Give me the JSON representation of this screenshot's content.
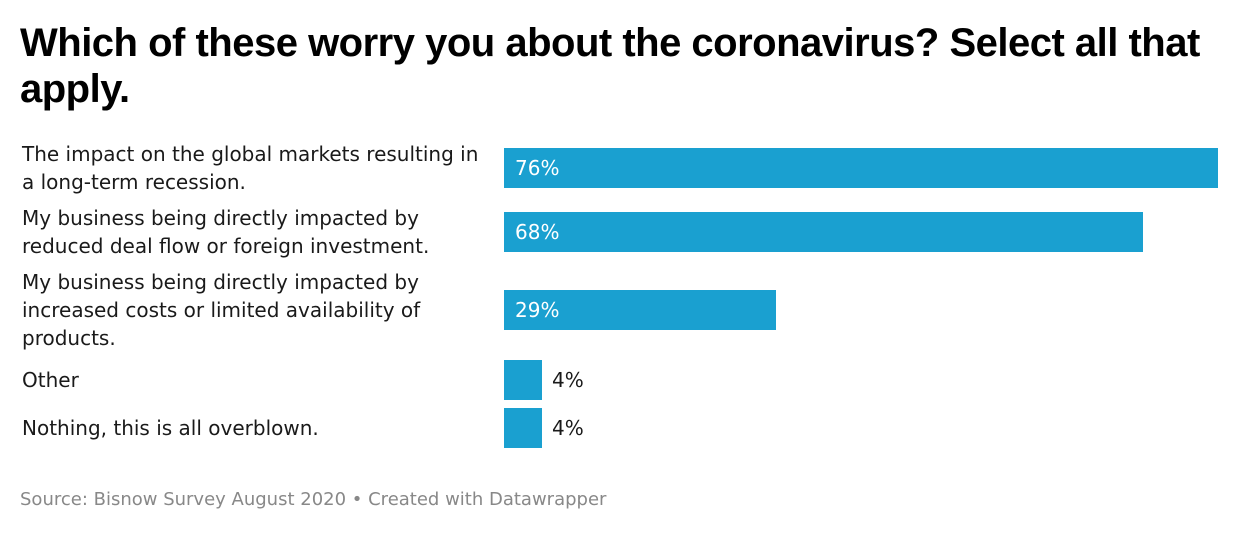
{
  "title": "Which of these worry you about the coronavirus? Select all that apply.",
  "footer": {
    "source": "Source: Bisnow Survey August 2020 • Created with Datawrapper"
  },
  "colors": {
    "bar": "#1aa0d0",
    "text": "#1a1a1a",
    "footer": "#888888"
  },
  "chart_data": {
    "type": "bar",
    "orientation": "horizontal",
    "title": "Which of these worry you about the coronavirus? Select all that apply.",
    "xlabel": "",
    "ylabel": "",
    "xlim": [
      0,
      76
    ],
    "grid": false,
    "legend": "none",
    "categories": [
      "The impact on the global markets resulting in a long-term recession.",
      "My business being directly impacted by reduced deal flow or foreign investment.",
      "My business being directly impacted by increased costs or limited availability of products.",
      "Other",
      "Nothing, this is all overblown."
    ],
    "values": [
      76,
      68,
      29,
      4,
      4
    ],
    "value_labels": [
      "76%",
      "68%",
      "29%",
      "4%",
      "4%"
    ]
  }
}
